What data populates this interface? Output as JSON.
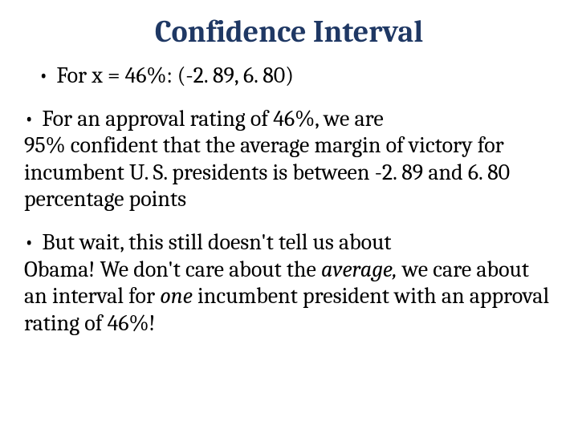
{
  "slide": {
    "title": "Confidence Interval",
    "title_color": "#1f3864",
    "title_fontsize": 38,
    "body_color": "#000000",
    "body_fontsize": 28,
    "bullet1": {
      "text": "For x = 46%: (-2. 89, 6. 80)",
      "indent": 18
    },
    "bullet2": {
      "line1": "For an approval rating of 46%, we are",
      "line2": "95% confident that the average margin of victory for incumbent U. S. presidents is between -2. 89 and 6. 80 percentage points"
    },
    "bullet3": {
      "line1_a": "But wait, this still doesn't tell us about",
      "line2_a": "Obama!  We don't care about the ",
      "line2_b_italic": "average,",
      "line3_a": " we care about an interval for ",
      "line3_b_italic": "one",
      "line3_c": " incumbent president with an approval rating of 46%!"
    }
  },
  "style": {
    "line_height": 1.2
  }
}
